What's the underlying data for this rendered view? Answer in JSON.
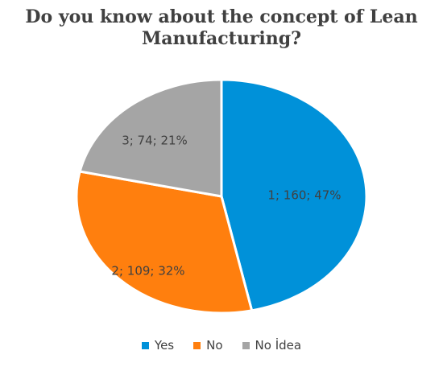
{
  "chart_data": {
    "type": "pie",
    "title_lines": [
      "Do you know about the concept of Lean",
      "Manufacturing?"
    ],
    "slices": [
      {
        "category": "1",
        "value": 160,
        "percent": 47,
        "label": "1; 160; 47%",
        "color": "#0091D9",
        "legend": "Yes"
      },
      {
        "category": "2",
        "value": 109,
        "percent": 32,
        "label": "2; 109; 32%",
        "color": "#FF7F0E",
        "legend": "No"
      },
      {
        "category": "3",
        "value": 74,
        "percent": 21,
        "label": "3; 74; 21%",
        "color": "#A5A5A5",
        "legend": "No İdea"
      }
    ],
    "legend_position": "bottom"
  }
}
